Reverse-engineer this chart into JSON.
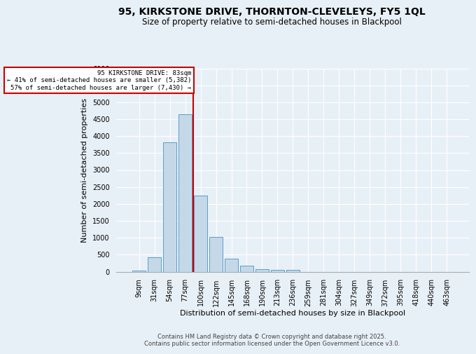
{
  "title": "95, KIRKSTONE DRIVE, THORNTON-CLEVELEYS, FY5 1QL",
  "subtitle": "Size of property relative to semi-detached houses in Blackpool",
  "xlabel": "Distribution of semi-detached houses by size in Blackpool",
  "ylabel": "Number of semi-detached properties",
  "footnote": "Contains HM Land Registry data © Crown copyright and database right 2025.\nContains public sector information licensed under the Open Government Licence v3.0.",
  "categories": [
    "9sqm",
    "31sqm",
    "54sqm",
    "77sqm",
    "100sqm",
    "122sqm",
    "145sqm",
    "168sqm",
    "190sqm",
    "213sqm",
    "236sqm",
    "259sqm",
    "281sqm",
    "304sqm",
    "327sqm",
    "349sqm",
    "372sqm",
    "395sqm",
    "418sqm",
    "440sqm",
    "463sqm"
  ],
  "values": [
    30,
    420,
    3820,
    4650,
    2250,
    1020,
    390,
    185,
    75,
    60,
    55,
    0,
    0,
    0,
    0,
    0,
    0,
    0,
    0,
    0,
    0
  ],
  "bar_color": "#c5d8e8",
  "bar_edge_color": "#5a9ec9",
  "highlight_line_color": "#cc0000",
  "annotation_title": "95 KIRKSTONE DRIVE: 83sqm",
  "annotation_line1": "← 41% of semi-detached houses are smaller (5,382)",
  "annotation_line2": "57% of semi-detached houses are larger (7,430) →",
  "annotation_box_color": "#cc0000",
  "ylim": [
    0,
    6000
  ],
  "yticks": [
    0,
    500,
    1000,
    1500,
    2000,
    2500,
    3000,
    3500,
    4000,
    4500,
    5000,
    5500,
    6000
  ],
  "bg_color": "#e8f0f7",
  "plot_bg_color": "#e8f0f7",
  "grid_color": "#ffffff",
  "title_fontsize": 10,
  "subtitle_fontsize": 8.5,
  "axis_label_fontsize": 8,
  "tick_fontsize": 7,
  "footnote_fontsize": 6
}
